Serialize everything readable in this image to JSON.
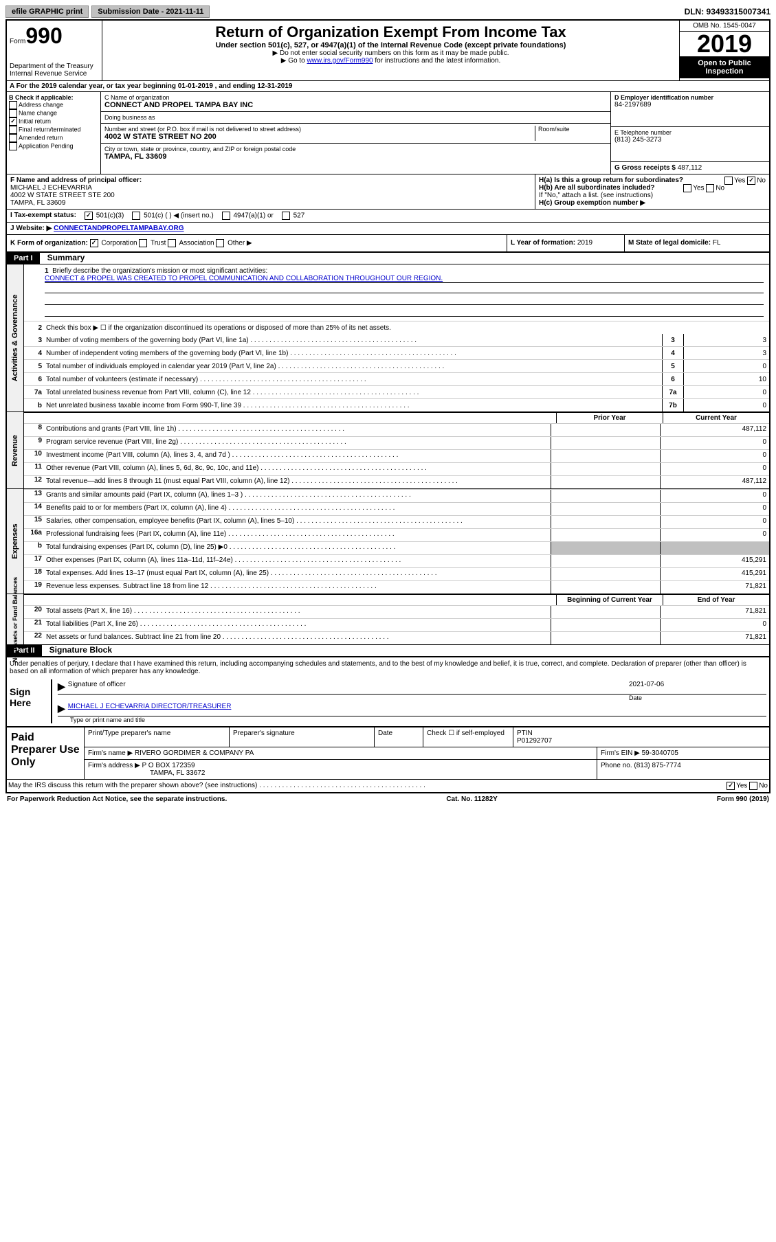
{
  "topbar": {
    "efile": "efile GRAPHIC print",
    "submission_label": "Submission Date - 2021-11-11",
    "dln": "DLN: 93493315007341"
  },
  "header": {
    "form_label": "Form",
    "form_number": "990",
    "dept": "Department of the Treasury\nInternal Revenue Service",
    "title": "Return of Organization Exempt From Income Tax",
    "subtitle": "Under section 501(c), 527, or 4947(a)(1) of the Internal Revenue Code (except private foundations)",
    "instr1": "▶ Do not enter social security numbers on this form as it may be made public.",
    "instr2_pre": "▶ Go to ",
    "instr2_link": "www.irs.gov/Form990",
    "instr2_post": " for instructions and the latest information.",
    "omb": "OMB No. 1545-0047",
    "year": "2019",
    "open": "Open to Public Inspection"
  },
  "row_a": "A For the 2019 calendar year, or tax year beginning 01-01-2019    , and ending 12-31-2019",
  "section_b": {
    "label": "B Check if applicable:",
    "items": [
      "Address change",
      "Name change",
      "Initial return",
      "Final return/terminated",
      "Amended return",
      "Application Pending"
    ],
    "checked_idx": 2
  },
  "section_c": {
    "name_label": "C Name of organization",
    "name": "CONNECT AND PROPEL TAMPA BAY INC",
    "dba_label": "Doing business as",
    "dba": "",
    "street_label": "Number and street (or P.O. box if mail is not delivered to street address)",
    "street": "4002 W STATE STREET NO 200",
    "room_label": "Room/suite",
    "city_label": "City or town, state or province, country, and ZIP or foreign postal code",
    "city": "TAMPA, FL  33609"
  },
  "section_d": {
    "ein_label": "D Employer identification number",
    "ein": "84-2197689",
    "tel_label": "E Telephone number",
    "tel": "(813) 245-3273",
    "gross_label": "G Gross receipts $",
    "gross": "487,112"
  },
  "section_f": {
    "label": "F Name and address of principal officer:",
    "name": "MICHAEL J ECHEVARRIA",
    "addr1": "4002 W STATE STREET STE 200",
    "addr2": "TAMPA, FL  33609"
  },
  "section_h": {
    "ha_label": "H(a)  Is this a group return for subordinates?",
    "hb_label": "H(b)  Are all subordinates included?",
    "h_note": "If \"No,\" attach a list. (see instructions)",
    "hc_label": "H(c)  Group exemption number ▶"
  },
  "row_i": {
    "label": "I    Tax-exempt status:",
    "opts": [
      "501(c)(3)",
      "501(c) (  ) ◀ (insert no.)",
      "4947(a)(1) or",
      "527"
    ]
  },
  "row_j": {
    "label": "J   Website: ▶",
    "url": "CONNECTANDPROPELTAMPABAY.ORG"
  },
  "row_k": {
    "k_label": "K Form of organization:",
    "k_opts": [
      "Corporation",
      "Trust",
      "Association",
      "Other ▶"
    ],
    "l_label": "L Year of formation:",
    "l_val": "2019",
    "m_label": "M State of legal domicile:",
    "m_val": "FL"
  },
  "part1": {
    "header": "Part I",
    "title": "Summary",
    "governance_label": "Activities & Governance",
    "revenue_label": "Revenue",
    "expenses_label": "Expenses",
    "netassets_label": "Net Assets or Fund Balances",
    "line1": "Briefly describe the organization's mission or most significant activities:",
    "mission": "CONNECT & PROPEL WAS CREATED TO PROPEL COMMUNICATION AND COLLABORATION THROUGHOUT OUR REGION.",
    "line2": "Check this box ▶ ☐  if the organization discontinued its operations or disposed of more than 25% of its net assets.",
    "lines_gov": [
      {
        "num": "3",
        "text": "Number of voting members of the governing body (Part VI, line 1a)",
        "box": "3",
        "val": "3"
      },
      {
        "num": "4",
        "text": "Number of independent voting members of the governing body (Part VI, line 1b)",
        "box": "4",
        "val": "3"
      },
      {
        "num": "5",
        "text": "Total number of individuals employed in calendar year 2019 (Part V, line 2a)",
        "box": "5",
        "val": "0"
      },
      {
        "num": "6",
        "text": "Total number of volunteers (estimate if necessary)",
        "box": "6",
        "val": "10"
      },
      {
        "num": "7a",
        "text": "Total unrelated business revenue from Part VIII, column (C), line 12",
        "box": "7a",
        "val": "0"
      },
      {
        "num": "b",
        "text": "Net unrelated business taxable income from Form 990-T, line 39",
        "box": "7b",
        "val": "0"
      }
    ],
    "col_prior": "Prior Year",
    "col_current": "Current Year",
    "lines_rev": [
      {
        "num": "8",
        "text": "Contributions and grants (Part VIII, line 1h)",
        "prior": "",
        "curr": "487,112"
      },
      {
        "num": "9",
        "text": "Program service revenue (Part VIII, line 2g)",
        "prior": "",
        "curr": "0"
      },
      {
        "num": "10",
        "text": "Investment income (Part VIII, column (A), lines 3, 4, and 7d )",
        "prior": "",
        "curr": "0"
      },
      {
        "num": "11",
        "text": "Other revenue (Part VIII, column (A), lines 5, 6d, 8c, 9c, 10c, and 11e)",
        "prior": "",
        "curr": "0"
      },
      {
        "num": "12",
        "text": "Total revenue—add lines 8 through 11 (must equal Part VIII, column (A), line 12)",
        "prior": "",
        "curr": "487,112"
      }
    ],
    "lines_exp": [
      {
        "num": "13",
        "text": "Grants and similar amounts paid (Part IX, column (A), lines 1–3 )",
        "prior": "",
        "curr": "0"
      },
      {
        "num": "14",
        "text": "Benefits paid to or for members (Part IX, column (A), line 4)",
        "prior": "",
        "curr": "0"
      },
      {
        "num": "15",
        "text": "Salaries, other compensation, employee benefits (Part IX, column (A), lines 5–10)",
        "prior": "",
        "curr": "0"
      },
      {
        "num": "16a",
        "text": "Professional fundraising fees (Part IX, column (A), line 11e)",
        "prior": "",
        "curr": "0"
      },
      {
        "num": "b",
        "text": "Total fundraising expenses (Part IX, column (D), line 25) ▶0",
        "prior": "shaded",
        "curr": "shaded"
      },
      {
        "num": "17",
        "text": "Other expenses (Part IX, column (A), lines 11a–11d, 11f–24e)",
        "prior": "",
        "curr": "415,291"
      },
      {
        "num": "18",
        "text": "Total expenses. Add lines 13–17 (must equal Part IX, column (A), line 25)",
        "prior": "",
        "curr": "415,291"
      },
      {
        "num": "19",
        "text": "Revenue less expenses. Subtract line 18 from line 12",
        "prior": "",
        "curr": "71,821"
      }
    ],
    "col_begin": "Beginning of Current Year",
    "col_end": "End of Year",
    "lines_net": [
      {
        "num": "20",
        "text": "Total assets (Part X, line 16)",
        "prior": "",
        "curr": "71,821"
      },
      {
        "num": "21",
        "text": "Total liabilities (Part X, line 26)",
        "prior": "",
        "curr": "0"
      },
      {
        "num": "22",
        "text": "Net assets or fund balances. Subtract line 21 from line 20",
        "prior": "",
        "curr": "71,821"
      }
    ]
  },
  "part2": {
    "header": "Part II",
    "title": "Signature Block",
    "perjury": "Under penalties of perjury, I declare that I have examined this return, including accompanying schedules and statements, and to the best of my knowledge and belief, it is true, correct, and complete. Declaration of preparer (other than officer) is based on all information of which preparer has any knowledge.",
    "sign_here": "Sign Here",
    "sig_officer_label": "Signature of officer",
    "sig_date": "2021-07-06",
    "date_label": "Date",
    "officer_name": "MICHAEL J ECHEVARRIA  DIRECTOR/TREASURER",
    "officer_type_label": "Type or print name and title"
  },
  "preparer": {
    "label": "Paid Preparer Use Only",
    "print_label": "Print/Type preparer's name",
    "sig_label": "Preparer's signature",
    "date_label": "Date",
    "check_label": "Check ☐ if self-employed",
    "ptin_label": "PTIN",
    "ptin": "P01292707",
    "firm_name_label": "Firm's name    ▶",
    "firm_name": "RIVERO GORDIMER & COMPANY PA",
    "firm_ein_label": "Firm's EIN ▶",
    "firm_ein": "59-3040705",
    "firm_addr_label": "Firm's address ▶",
    "firm_addr1": "P O BOX 172359",
    "firm_addr2": "TAMPA, FL  33672",
    "phone_label": "Phone no.",
    "phone": "(813) 875-7774"
  },
  "footer": {
    "discuss": "May the IRS discuss this return with the preparer shown above? (see instructions)",
    "yes": "Yes",
    "no": "No",
    "paperwork": "For Paperwork Reduction Act Notice, see the separate instructions.",
    "catno": "Cat. No. 11282Y",
    "formref": "Form 990 (2019)"
  }
}
